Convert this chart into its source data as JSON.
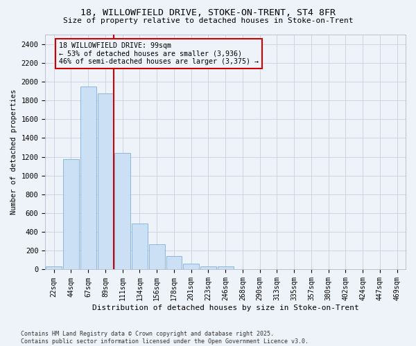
{
  "title_line1": "18, WILLOWFIELD DRIVE, STOKE-ON-TRENT, ST4 8FR",
  "title_line2": "Size of property relative to detached houses in Stoke-on-Trent",
  "xlabel": "Distribution of detached houses by size in Stoke-on-Trent",
  "ylabel": "Number of detached properties",
  "bar_color": "#cce0f5",
  "bar_edgecolor": "#7ab0d8",
  "categories": [
    "22sqm",
    "44sqm",
    "67sqm",
    "89sqm",
    "111sqm",
    "134sqm",
    "156sqm",
    "178sqm",
    "201sqm",
    "223sqm",
    "246sqm",
    "268sqm",
    "290sqm",
    "313sqm",
    "335sqm",
    "357sqm",
    "380sqm",
    "402sqm",
    "424sqm",
    "447sqm",
    "469sqm"
  ],
  "values": [
    30,
    1175,
    1950,
    1875,
    1240,
    490,
    270,
    140,
    65,
    35,
    35,
    0,
    0,
    0,
    0,
    0,
    0,
    0,
    0,
    0,
    0
  ],
  "ylim": [
    0,
    2500
  ],
  "yticks": [
    0,
    200,
    400,
    600,
    800,
    1000,
    1200,
    1400,
    1600,
    1800,
    2000,
    2200,
    2400
  ],
  "property_line_x": 3.5,
  "annotation_title": "18 WILLOWFIELD DRIVE: 99sqm",
  "annotation_line1": "← 53% of detached houses are smaller (3,936)",
  "annotation_line2": "46% of semi-detached houses are larger (3,375) →",
  "vline_color": "#cc0000",
  "annotation_box_edgecolor": "#cc0000",
  "bg_color": "#eef2f9",
  "footer_line1": "Contains HM Land Registry data © Crown copyright and database right 2025.",
  "footer_line2": "Contains public sector information licensed under the Open Government Licence v3.0.",
  "grid_color": "#c8d0e0"
}
